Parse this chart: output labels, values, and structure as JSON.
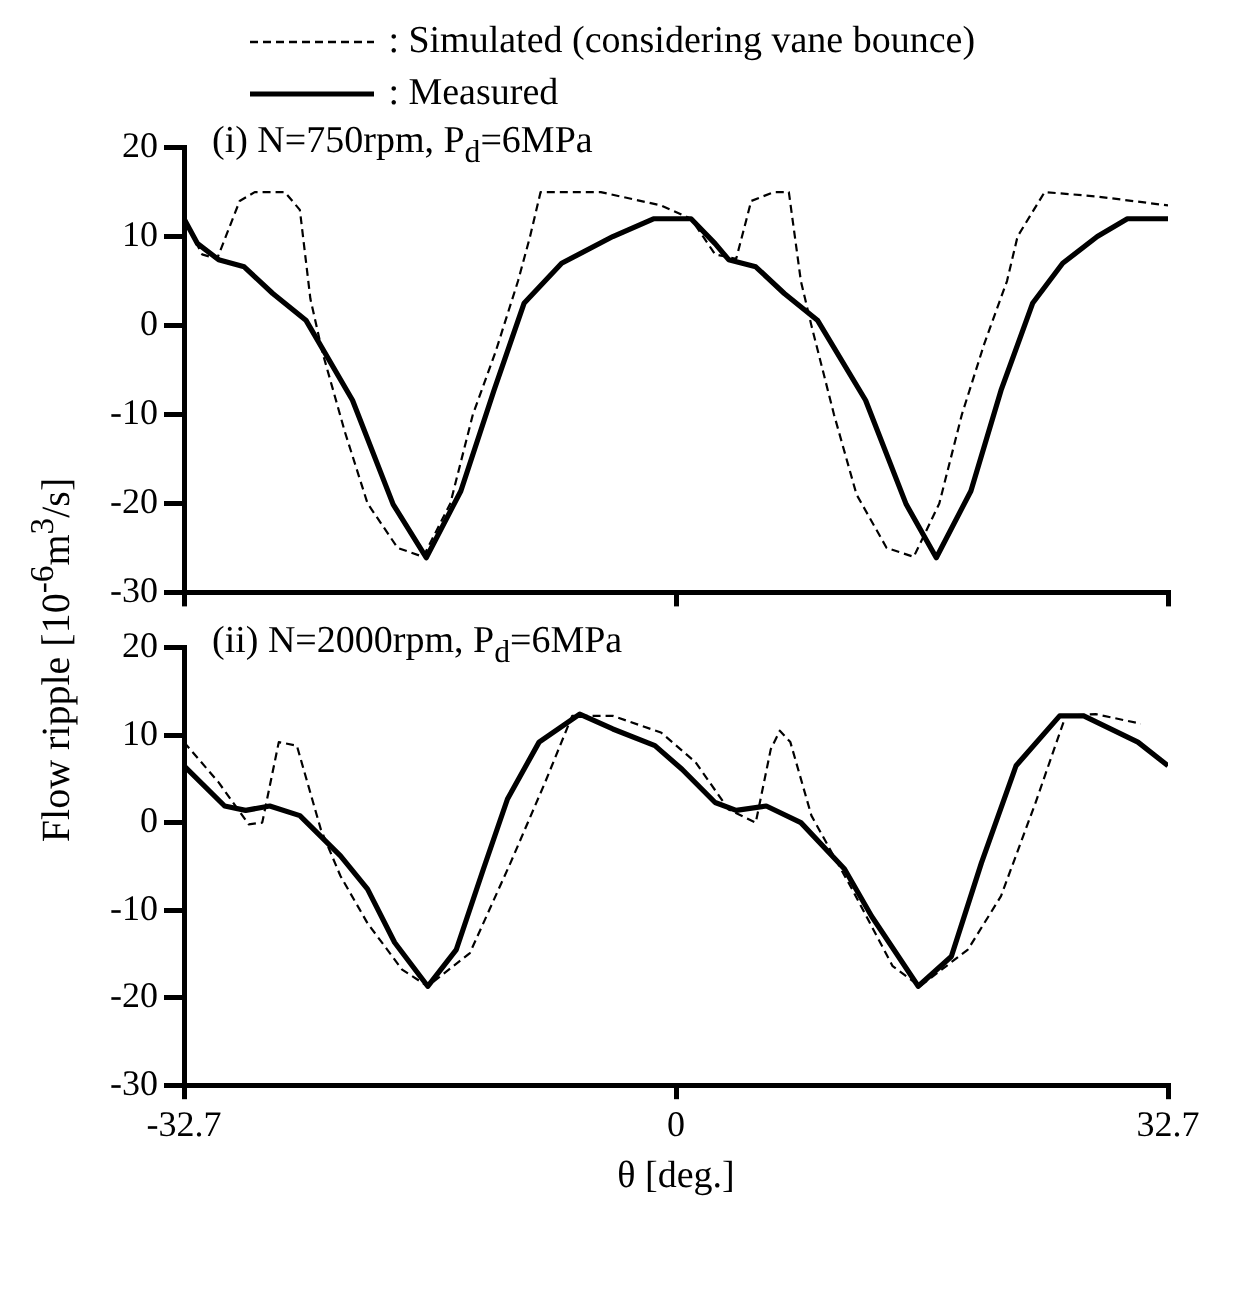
{
  "chart_data": [
    {
      "type": "line",
      "title": "(i) N=750rpm, P$_{d}$=6MPa",
      "ylabel": "Flow ripple [10$^{-6}$m$^{3}$/s]",
      "legend": "top",
      "marker": "none",
      "tick_labels": "y",
      "xlim": [
        -32.7,
        32.7
      ],
      "xticks": [
        -32.7,
        0,
        32.7
      ],
      "ylim": [
        -30,
        20
      ],
      "yticks": [
        -30,
        -20,
        -10,
        0,
        10,
        20
      ],
      "series": [
        {
          "name": ": Simulated (considering vane bounce)",
          "color": "#000000",
          "line_style": "dashed",
          "x": [
            -32.7,
            -31.5,
            -30.5,
            -29,
            -28,
            -26,
            -25,
            -24.3,
            -23.5,
            -22,
            -20.5,
            -18.5,
            -16.8,
            -15,
            -13.5,
            -12,
            -10.5,
            -9.7,
            -9,
            -5,
            -1,
            1,
            2.6,
            4,
            5,
            6.5,
            7.5,
            8.3,
            9,
            10.5,
            12,
            14,
            15.8,
            17.5,
            19,
            20.5,
            22,
            22.7,
            24.5,
            28,
            32.7
          ],
          "values": [
            12,
            8,
            7.5,
            14,
            15,
            15,
            13,
            3,
            -3,
            -12,
            -20,
            -25,
            -26,
            -20,
            -10,
            -3,
            5,
            10,
            15,
            15,
            13.5,
            12,
            8,
            7.5,
            14,
            15,
            15,
            5,
            0,
            -10,
            -19,
            -25,
            -26,
            -20,
            -10,
            -2,
            5,
            10,
            15,
            14.5,
            13.5
          ]
        },
        {
          "name": ": Measured",
          "color": "#000000",
          "line_style": "solid",
          "x": [
            -32.7,
            -31.8,
            -30.4,
            -28.7,
            -26.8,
            -24.6,
            -21.5,
            -18.8,
            -16.6,
            -14.3,
            -12.1,
            -10.1,
            -7.6,
            -4.2,
            -1.5,
            1,
            2.6,
            3.5,
            5.3,
            7.2,
            9.4,
            12.6,
            15.3,
            17.3,
            19.6,
            21.6,
            23.7,
            25.7,
            28,
            30,
            32.7
          ],
          "values": [
            12,
            9.2,
            7.4,
            6.6,
            3.6,
            0.6,
            -8.4,
            -20.1,
            -26.1,
            -18.6,
            -7.3,
            2.5,
            7,
            10,
            12,
            12,
            9.2,
            7.4,
            6.6,
            3.6,
            0.6,
            -8.4,
            -20.1,
            -26.1,
            -18.6,
            -7.3,
            2.5,
            7,
            10,
            12,
            12
          ]
        }
      ]
    },
    {
      "type": "line",
      "title": "(ii) N=2000rpm, P$_{d}$=6MPa",
      "xlabel": "θ [deg.]",
      "marker": "none",
      "xlim": [
        -32.7,
        32.7
      ],
      "xticks": [
        -32.7,
        0,
        32.7
      ],
      "ylim": [
        -30,
        20
      ],
      "yticks": [
        -30,
        -20,
        -10,
        0,
        10,
        20
      ],
      "series": [
        {
          "color": "#000000",
          "line_style": "dashed",
          "x": [
            -32.7,
            -30.4,
            -28.4,
            -27.5,
            -26.4,
            -25.2,
            -23.6,
            -22.3,
            -20.5,
            -18.2,
            -16.5,
            -13.7,
            -11,
            -8.7,
            -6.9,
            -4.2,
            -1,
            1.3,
            3.5,
            5.3,
            6.3,
            6.9,
            7.6,
            9,
            11.7,
            14.4,
            16.2,
            19.4,
            21.6,
            23.9,
            25.9,
            27.9,
            30.9
          ],
          "values": [
            9.2,
            4.6,
            -0.2,
            0,
            9.2,
            8.8,
            -0.8,
            -6.1,
            -11.5,
            -16.8,
            -18.7,
            -14.9,
            -4.6,
            4.6,
            12.2,
            12.2,
            10.3,
            6.9,
            1.5,
            0,
            8.4,
            10.5,
            9.2,
            0.8,
            -7.6,
            -16.4,
            -18.7,
            -14.5,
            -8.4,
            2.3,
            12.2,
            12.4,
            11.3
          ]
        },
        {
          "color": "#000000",
          "line_style": "solid",
          "x": [
            -32.7,
            -30,
            -28.6,
            -27,
            -25,
            -22.3,
            -20.5,
            -18.7,
            -16.5,
            -14.6,
            -12.8,
            -11.2,
            -9.1,
            -6.4,
            -4.2,
            -1.4,
            0.4,
            2.6,
            4,
            6,
            8.3,
            11.2,
            13,
            16.1,
            18.3,
            20.3,
            22.6,
            25.5,
            27.1,
            30.7,
            32.7
          ],
          "values": [
            6.5,
            1.9,
            1.4,
            1.9,
            0.8,
            -3.8,
            -7.6,
            -13.7,
            -18.7,
            -14.5,
            -5.3,
            2.7,
            9.2,
            12.4,
            10.7,
            8.8,
            6.1,
            2.3,
            1.4,
            1.9,
            0,
            -5.3,
            -10.7,
            -18.7,
            -15.3,
            -4.6,
            6.5,
            12.2,
            12.2,
            9.2,
            6.5
          ]
        }
      ]
    }
  ]
}
